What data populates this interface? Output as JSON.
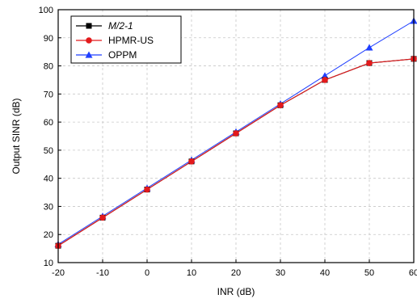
{
  "chart_data": {
    "type": "line",
    "title": "",
    "xlabel": "INR (dB)",
    "ylabel": "Output SINR (dB)",
    "x": [
      -20,
      -10,
      0,
      10,
      20,
      30,
      40,
      50,
      60
    ],
    "xlim": [
      -20,
      60
    ],
    "ylim": [
      10,
      100
    ],
    "xticks": [
      "-20",
      "-10",
      "0",
      "10",
      "20",
      "30",
      "40",
      "50",
      "60"
    ],
    "yticks": [
      "10",
      "20",
      "30",
      "40",
      "50",
      "60",
      "70",
      "80",
      "90",
      "100"
    ],
    "grid": true,
    "legend_position": "top-left",
    "series": [
      {
        "name": "M/2-1",
        "color": "#000000",
        "marker": "square",
        "italic": true,
        "values": [
          16,
          26,
          36,
          46,
          56,
          66,
          75,
          81,
          82.5
        ]
      },
      {
        "name": "HPMR-US",
        "color": "#e31a1c",
        "marker": "circle",
        "italic": false,
        "values": [
          16,
          26,
          36,
          46,
          56,
          66,
          75,
          81,
          82.5
        ]
      },
      {
        "name": "OPPM",
        "color": "#1f3fff",
        "marker": "triangle",
        "italic": false,
        "values": [
          16.5,
          26.5,
          36.5,
          46.5,
          56.5,
          66.5,
          76.5,
          86.5,
          96
        ]
      }
    ]
  }
}
